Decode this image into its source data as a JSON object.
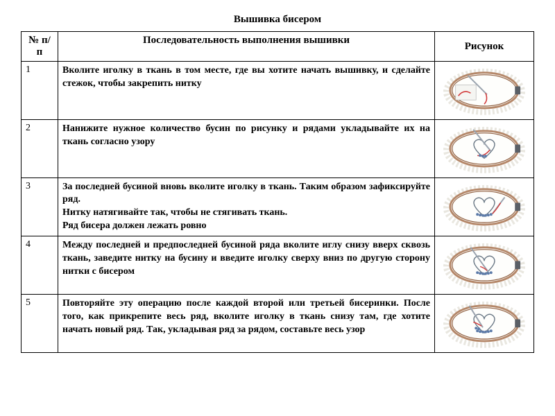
{
  "title": "Вышивка бисером",
  "headers": {
    "num": "№ п/п",
    "desc": "Последовательность выполнения вышивки",
    "img": "Рисунок"
  },
  "rows": [
    {
      "num": "1",
      "desc": "Вколите иголку в ткань в том месте, где вы хотите начать вышивку, и сделайте стежок, чтобы закрепить нитку"
    },
    {
      "num": "2",
      "desc": "Нанижите нужное количество бусин по рисунку и рядами укладывайте их на ткань согласно узору"
    },
    {
      "num": "3",
      "desc": "За последней бусиной вновь вколите иголку в ткань. Таким образом зафиксируйте ряд.\nНитку натягивайте так, чтобы не стягивать ткань.\nРяд бисера должен лежать ровно"
    },
    {
      "num": "4",
      "desc": "Между последней и предпоследней бусиной ряда вколите иглу снизу вверх сквозь ткань, заведите нитку на бусину и введите иголку сверху вниз по другую сторону нитки с бисером"
    },
    {
      "num": "5",
      "desc": "Повторяйте эту операцию после каждой второй или третьей бисеринки. После того, как прикрепите весь ряд, вколите иголку в ткань снизу там, где хотите начать новый ряд. Так, укладывая ряд за рядом, составьте весь узор"
    }
  ],
  "colors": {
    "hoop_outer": "#b5886a",
    "hoop_inner": "#8c5a3a",
    "fabric": "#fefefc",
    "ruffle": "#e9e7e0",
    "heart_outline": "#6a7885",
    "thread": "#d23a3a",
    "bead": "#5b7aa8",
    "needle": "#9aa3ae"
  }
}
